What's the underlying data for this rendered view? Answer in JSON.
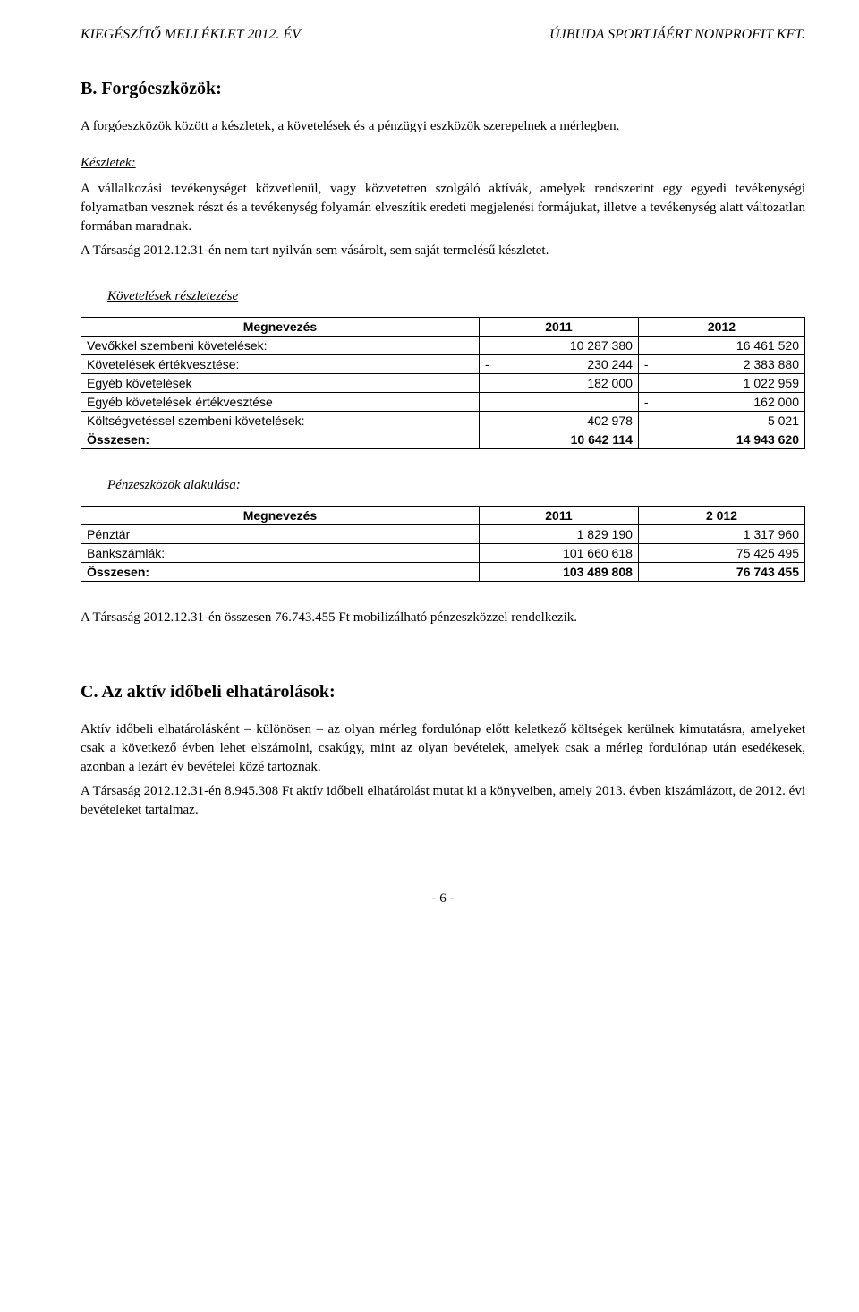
{
  "header": {
    "left": "KIEGÉSZÍTŐ MELLÉKLET 2012. ÉV",
    "right": "ÚJBUDA SPORTJÁÉRT NONPROFIT KFT."
  },
  "sectionB": {
    "title": "B. Forgóeszközök:",
    "intro": "A forgóeszközök között a készletek, a követelések és a pénzügyi eszközök szerepelnek a mérlegben.",
    "keszletek_label": "Készletek:",
    "keszletek_p1": "A vállalkozási tevékenységet közvetlenül, vagy közvetetten szolgáló aktívák, amelyek rendszerint egy egyedi tevékenységi folyamatban vesznek részt és a tevékenység folyamán elveszítik eredeti megjelenési formájukat, illetve a tevékenység alatt változatlan formában maradnak.",
    "keszletek_p2": "A Társaság 2012.12.31-én nem tart nyilván sem vásárolt, sem saját termelésű készletet.",
    "kovetelesek_label": "Követelések részletezése"
  },
  "table1": {
    "headers": [
      "Megnevezés",
      "2011",
      "2012"
    ],
    "rows": [
      {
        "label": "Vevőkkel szembeni követelések:",
        "c1": "10 287 380",
        "c2": "16 461 520"
      },
      {
        "label": "Követelések értékvesztése:",
        "c1_neg": true,
        "c1": "230 244",
        "c2_neg": true,
        "c2": "2 383 880"
      },
      {
        "label": "Egyéb követelések",
        "c1": "182 000",
        "c2": "1 022 959"
      },
      {
        "label": "Egyéb követelések értékvesztése",
        "c1": "",
        "c2_neg": true,
        "c2": "162 000"
      },
      {
        "label": "Költségvetéssel szembeni követelések:",
        "c1": "402 978",
        "c2": "5 021"
      }
    ],
    "total": {
      "label": "Összesen:",
      "c1": "10 642 114",
      "c2": "14 943 620"
    }
  },
  "penzeszkozok_label": "Pénzeszközök alakulása:",
  "table2": {
    "headers": [
      "Megnevezés",
      "2011",
      "2 012"
    ],
    "rows": [
      {
        "label": "Pénztár",
        "c1": "1 829 190",
        "c2": "1 317 960"
      },
      {
        "label": "Bankszámlák:",
        "c1": "101 660 618",
        "c2": "75 425 495"
      }
    ],
    "total": {
      "label": "Összesen:",
      "c1": "103 489 808",
      "c2": "76 743 455"
    }
  },
  "mobilizalhato": "A Társaság 2012.12.31-én összesen 76.743.455  Ft mobilizálható pénzeszközzel rendelkezik.",
  "sectionC": {
    "title": "C. Az aktív időbeli elhatárolások:",
    "p1": "Aktív időbeli elhatárolásként – különösen – az olyan mérleg fordulónap előtt keletkező költségek kerülnek kimutatásra, amelyeket csak a következő évben lehet elszámolni, csakúgy, mint az olyan bevételek, amelyek csak a mérleg fordulónap után esedékesek, azonban a lezárt év bevételei közé tartoznak.",
    "p2": "A Társaság 2012.12.31-én 8.945.308 Ft aktív időbeli elhatárolást mutat ki a könyveiben, amely 2013. évben kiszámlázott, de 2012. évi bevételeket tartalmaz."
  },
  "footer": "- 6 -"
}
